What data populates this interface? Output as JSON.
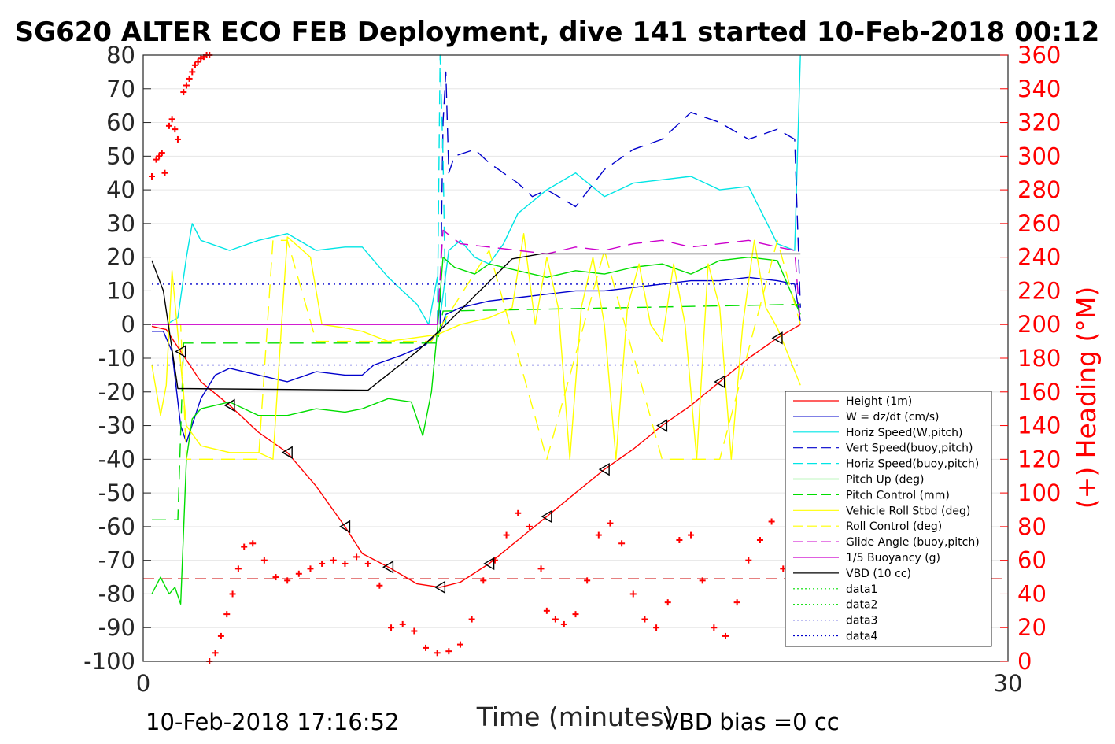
{
  "figure": {
    "title": "SG620 ALTER ECO FEB Deployment, dive 141 started 10-Feb-2018 00:12",
    "footer_left": "10-Feb-2018 17:16:52",
    "footer_right": "VBD bias =0 cc"
  },
  "chart_data": {
    "type": "line",
    "title": "SG620 ALTER ECO FEB Deployment, dive 141 started 10-Feb-2018 00:12",
    "xlabel": "Time (minutes)",
    "ylabel_left": "",
    "ylabel_right": "(+) Heading (°M)",
    "xlim": [
      0,
      30
    ],
    "ylim_left": [
      -100,
      80
    ],
    "ylim_right": [
      0,
      360
    ],
    "x_ticks": [
      0,
      30
    ],
    "y_ticks_left": [
      80,
      70,
      60,
      50,
      40,
      30,
      20,
      10,
      0,
      -10,
      -20,
      -30,
      -40,
      -50,
      -60,
      -70,
      -80,
      -90,
      -100
    ],
    "y_ticks_right": [
      360,
      340,
      320,
      300,
      280,
      260,
      240,
      220,
      200,
      180,
      160,
      140,
      120,
      100,
      80,
      60,
      40,
      20,
      0
    ],
    "grid": "horizontal",
    "legend_position": "bottom-right",
    "series": [
      {
        "name": "Height (1m)",
        "color": "#ff0000",
        "style": "solid",
        "x": [
          0.3,
          0.8,
          1.3,
          2.0,
          3.0,
          4.0,
          5.0,
          6.0,
          7.0,
          7.6,
          8.5,
          9.5,
          10.3,
          11.0,
          12.0,
          13.0,
          14.0,
          15.0,
          16.0,
          17.0,
          18.0,
          19.0,
          20.0,
          21.0,
          22.0,
          22.8
        ],
        "y": [
          -0.5,
          -1.5,
          -8,
          -17,
          -24,
          -32,
          -38,
          -48,
          -60,
          -68,
          -72,
          -77,
          -78,
          -76.5,
          -71,
          -64,
          -57,
          -50,
          -43,
          -37,
          -30,
          -24,
          -17,
          -10,
          -4,
          0
        ]
      },
      {
        "name": "W = dz/dt (cm/s)",
        "color": "#0000cc",
        "style": "solid",
        "x": [
          0.3,
          0.7,
          1.0,
          1.3,
          1.5,
          2.0,
          2.5,
          3.0,
          4.0,
          5.0,
          6.0,
          7.0,
          7.6,
          8.0,
          9.0,
          9.8,
          10.3,
          10.5,
          11.0,
          12.0,
          13.0,
          14.0,
          15.0,
          16.0,
          17.0,
          18.0,
          19.0,
          20.0,
          21.0,
          22.0,
          22.6,
          22.8
        ],
        "y": [
          -2,
          -2,
          -8,
          -30,
          -35,
          -22,
          -15,
          -13,
          -15,
          -17,
          -14,
          -15,
          -15,
          -12,
          -9,
          -6,
          -2,
          3,
          5,
          7,
          8,
          9,
          10,
          10,
          11,
          12,
          13,
          13,
          14,
          13,
          12,
          1
        ]
      },
      {
        "name": "Horiz Speed(W,pitch)",
        "color": "#00e5e5",
        "style": "solid",
        "x": [
          0.3,
          0.8,
          1.2,
          1.5,
          1.7,
          2.0,
          3.0,
          4.0,
          5.0,
          6.0,
          7.0,
          7.6,
          8.5,
          9.5,
          9.9,
          10.2,
          10.3,
          10.6,
          11.0,
          11.5,
          12.0,
          12.5,
          13.0,
          14.0,
          15.0,
          16.0,
          17.0,
          18.0,
          19.0,
          20.0,
          21.0,
          22.0,
          22.6,
          22.8
        ],
        "y": [
          0,
          0,
          2,
          20,
          30,
          25,
          22,
          25,
          27,
          22,
          23,
          23,
          14,
          6,
          0,
          14,
          2,
          22,
          25,
          20,
          18,
          24,
          33,
          40,
          45,
          38,
          42,
          43,
          44,
          40,
          41,
          24,
          22,
          80
        ]
      },
      {
        "name": "Vert Speed(buoy,pitch)",
        "color": "#0000cc",
        "style": "dashed",
        "x": [
          10.3,
          10.4,
          10.5,
          10.6,
          10.8,
          11.5,
          12.0,
          13.0,
          13.5,
          14.0,
          15.0,
          16.0,
          17.0,
          18.0,
          19.0,
          20.0,
          21.0,
          22.0,
          22.6,
          22.8
        ],
        "y": [
          0,
          60,
          75,
          45,
          50,
          52,
          48,
          42,
          38,
          40,
          35,
          46,
          52,
          55,
          63,
          60,
          55,
          58,
          55,
          5
        ]
      },
      {
        "name": "Horiz Speed(buoy,pitch)",
        "color": "#00e5e5",
        "style": "dashed",
        "x": [
          10.2,
          10.3,
          10.4,
          10.5
        ],
        "y": [
          0,
          80,
          50,
          0
        ]
      },
      {
        "name": "Pitch Up (deg)",
        "color": "#00dd00",
        "style": "solid",
        "x": [
          0.3,
          0.6,
          0.9,
          1.1,
          1.3,
          1.5,
          1.7,
          2.0,
          3.0,
          4.0,
          5.0,
          6.0,
          7.0,
          7.6,
          8.5,
          9.3,
          9.7,
          10.0,
          10.2,
          10.4,
          10.8,
          11.5,
          12.0,
          13.0,
          14.0,
          15.0,
          16.0,
          17.0,
          18.0,
          19.0,
          20.0,
          21.0,
          22.0,
          22.8
        ],
        "y": [
          -80,
          -75,
          -80,
          -78,
          -83,
          -40,
          -28,
          -25,
          -23,
          -27,
          -27,
          -25,
          -26,
          -25,
          -22,
          -23,
          -33,
          -20,
          -2,
          20,
          17,
          15,
          18,
          16,
          14,
          16,
          15,
          17,
          18,
          15,
          19,
          20,
          19,
          3
        ]
      },
      {
        "name": "Pitch Control (mm)",
        "color": "#00dd00",
        "style": "dashed",
        "x": [
          0.3,
          1.2,
          1.4,
          10.2,
          10.4,
          22.8
        ],
        "y": [
          -58,
          -58,
          -5.5,
          -5.5,
          4,
          6
        ]
      },
      {
        "name": "Vehicle Roll Stbd (deg)",
        "color": "#ffff00",
        "style": "solid",
        "x": [
          0.3,
          0.6,
          0.8,
          1.0,
          1.5,
          2.0,
          3.0,
          4.0,
          4.5,
          4.8,
          5.0,
          5.8,
          6.2,
          7.0,
          7.6,
          8.5,
          10.2,
          11.0,
          12.0,
          12.8,
          13.2,
          13.6,
          14.0,
          14.4,
          14.8,
          15.2,
          15.6,
          16.0,
          16.4,
          16.8,
          17.2,
          17.6,
          18.0,
          18.4,
          18.8,
          19.2,
          19.6,
          20.0,
          20.4,
          20.8,
          21.2,
          21.6,
          22.0,
          22.8
        ],
        "y": [
          -12,
          -27,
          -18,
          16,
          -30,
          -36,
          -38,
          -38,
          -40,
          0,
          26,
          20,
          0,
          -1,
          -2,
          -5,
          -3,
          0,
          2,
          5,
          27,
          0,
          20,
          5,
          -40,
          5,
          20,
          0,
          -40,
          5,
          18,
          0,
          -5,
          18,
          0,
          -40,
          18,
          5,
          -40,
          0,
          25,
          5,
          -1,
          -18
        ]
      },
      {
        "name": "Roll Control (deg)",
        "color": "#ffff00",
        "style": "dashed",
        "x": [
          0.3,
          1.3,
          1.5,
          4.0,
          4.5,
          5.0,
          6.0,
          7.5,
          10.0,
          12.0,
          14.0,
          16.0,
          18.0,
          20.0,
          22.0,
          22.8
        ],
        "y": [
          0,
          0,
          -40,
          -40,
          25,
          25,
          -5,
          -5,
          -5,
          22,
          -40,
          22,
          -40,
          -40,
          25,
          0
        ]
      },
      {
        "name": "Glide Angle (buoy,pitch)",
        "color": "#cc00cc",
        "style": "dashed",
        "x": [
          10.2,
          10.4,
          11.0,
          12.0,
          13.0,
          14.0,
          15.0,
          16.0,
          17.0,
          18.0,
          19.0,
          20.0,
          21.0,
          22.0,
          22.6,
          22.8
        ],
        "y": [
          0,
          28,
          24,
          23,
          22,
          21,
          23,
          22,
          24,
          25,
          23,
          24,
          25,
          23,
          22,
          0
        ]
      },
      {
        "name": "1/5 Buoyancy (g)",
        "color": "#cc00cc",
        "style": "solid",
        "x": [
          0.3,
          10.2
        ],
        "y": [
          0,
          0
        ]
      },
      {
        "name": "VBD (10 cc)",
        "color": "#000000",
        "style": "solid",
        "x": [
          0.3,
          0.7,
          1.2,
          7.8,
          9.5,
          10.5,
          12.8,
          13.8,
          22.8
        ],
        "y": [
          19,
          10,
          -19,
          -19.5,
          -8,
          0,
          19.5,
          21,
          21
        ]
      },
      {
        "name": "data1",
        "color": "#00dd00",
        "style": "dotted",
        "x": [],
        "y": []
      },
      {
        "name": "data2",
        "color": "#00dd00",
        "style": "dotted",
        "x": [],
        "y": []
      },
      {
        "name": "data3",
        "color": "#0000cc",
        "style": "dotted",
        "x": [
          0.3,
          22.8
        ],
        "y": [
          12,
          12
        ]
      },
      {
        "name": "data4",
        "color": "#0000cc",
        "style": "dotted",
        "x": [
          0.3,
          22.8
        ],
        "y": [
          -12,
          -12
        ]
      }
    ],
    "reference_line": {
      "color": "#cc0000",
      "style": "dashed",
      "y": -75.5
    },
    "heading_right_axis": {
      "color": "#ff0000",
      "marker": "+",
      "x": [
        0.3,
        0.45,
        0.55,
        0.65,
        0.75,
        0.9,
        1.0,
        1.1,
        1.2,
        1.4,
        1.5,
        1.6,
        1.7,
        1.8,
        1.9,
        2.0,
        2.1,
        2.2,
        2.3,
        2.3,
        2.5,
        2.7,
        2.9,
        3.1,
        3.3,
        3.5,
        3.8,
        4.2,
        4.6,
        5.0,
        5.4,
        5.8,
        6.2,
        6.6,
        7.0,
        7.4,
        7.8,
        8.2,
        8.6,
        9.0,
        9.4,
        9.8,
        10.2,
        10.6,
        11.0,
        11.4,
        11.8,
        12.2,
        12.6,
        13.0,
        13.4,
        13.8,
        14.0,
        14.3,
        14.6,
        15.0,
        15.4,
        15.8,
        16.2,
        16.6,
        17.0,
        17.4,
        17.8,
        18.2,
        18.6,
        19.0,
        19.4,
        19.8,
        20.2,
        20.6,
        21.0,
        21.4,
        21.8,
        22.2,
        22.6
      ],
      "y": [
        288,
        298,
        300,
        302,
        290,
        318,
        322,
        316,
        310,
        338,
        342,
        346,
        350,
        354,
        356,
        358,
        359,
        360,
        360,
        0,
        5,
        15,
        28,
        40,
        55,
        68,
        70,
        60,
        50,
        48,
        52,
        55,
        58,
        60,
        58,
        62,
        58,
        45,
        20,
        22,
        18,
        8,
        5,
        6,
        10,
        25,
        48,
        60,
        75,
        88,
        80,
        55,
        30,
        25,
        22,
        28,
        48,
        75,
        82,
        70,
        40,
        25,
        20,
        35,
        72,
        75,
        48,
        20,
        15,
        35,
        60,
        72,
        83,
        55,
        30
      ]
    }
  }
}
